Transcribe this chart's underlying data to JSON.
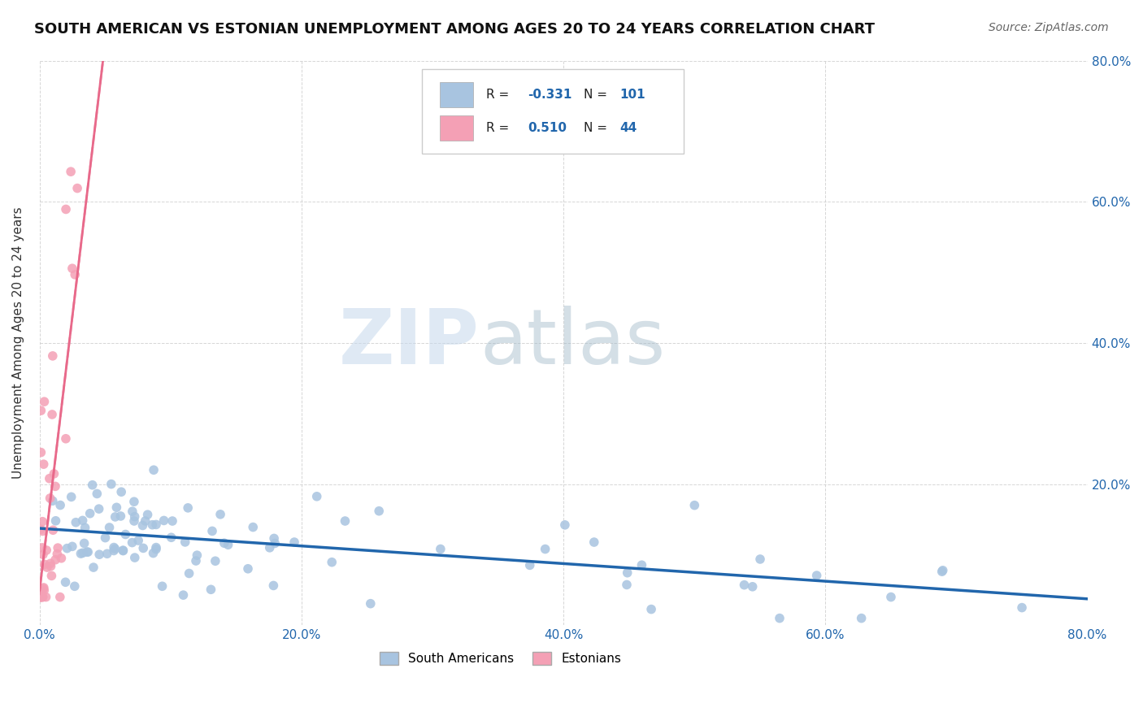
{
  "title": "SOUTH AMERICAN VS ESTONIAN UNEMPLOYMENT AMONG AGES 20 TO 24 YEARS CORRELATION CHART",
  "source": "Source: ZipAtlas.com",
  "ylabel": "Unemployment Among Ages 20 to 24 years",
  "xlim": [
    0.0,
    0.8
  ],
  "ylim": [
    0.0,
    0.8
  ],
  "blue_color": "#a8c4e0",
  "pink_color": "#f4a0b5",
  "blue_line_color": "#2166ac",
  "pink_line_color": "#e8698a",
  "R_blue": -0.331,
  "N_blue": 101,
  "R_pink": 0.51,
  "N_pink": 44,
  "watermark_zip": "ZIP",
  "watermark_atlas": "atlas",
  "background_color": "#ffffff",
  "grid_color": "#cccccc"
}
